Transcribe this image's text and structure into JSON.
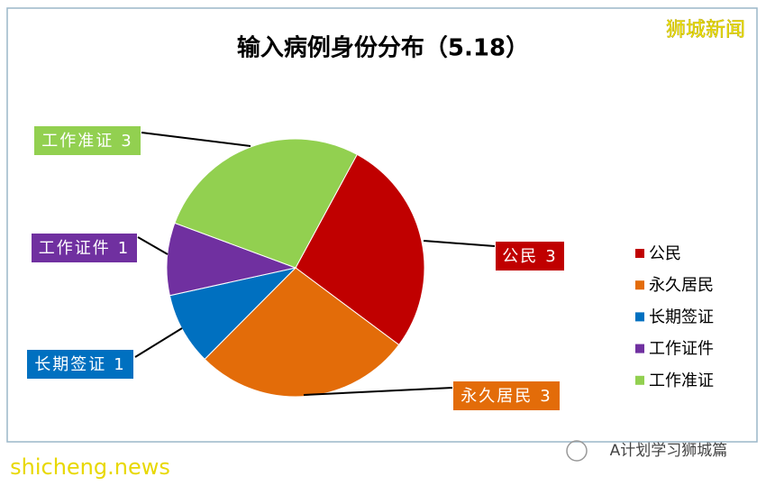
{
  "chart_data": {
    "type": "pie",
    "title": "输入病例身份分布（5.18）",
    "categories": [
      "公民",
      "永久居民",
      "长期签证",
      "工作证件",
      "工作准证"
    ],
    "values": [
      3,
      3,
      1,
      1,
      3
    ],
    "colors": [
      "#c00000",
      "#e36c09",
      "#0070c0",
      "#7030a0",
      "#92d050"
    ],
    "legend": "right"
  },
  "watermarks": {
    "top_right": "狮城新闻",
    "bottom_left": "shicheng.news",
    "bottom_right": "A计划学习狮城篇"
  }
}
